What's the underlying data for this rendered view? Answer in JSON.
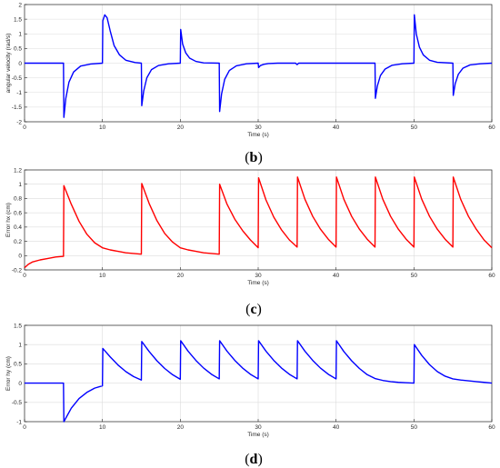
{
  "chart_data": [
    {
      "type": "line",
      "caption": "b",
      "xlabel": "Time (s)",
      "ylabel": "angular velocity (rad/s)",
      "xlim": [
        0,
        60
      ],
      "ylim": [
        -2,
        2
      ],
      "xticks": [
        0,
        10,
        20,
        30,
        40,
        50,
        60
      ],
      "yticks": [
        -2,
        -1.5,
        -1,
        -0.5,
        0,
        0.5,
        1,
        1.5,
        2
      ],
      "grid": true,
      "color": "#0000ff",
      "series": [
        {
          "x": [
            0,
            5,
            5.05,
            5.3,
            5.7,
            6.3,
            7.2,
            8.5,
            10,
            10.05,
            10.3,
            10.6,
            11,
            11.5,
            12.2,
            13,
            14.2,
            15,
            15.05,
            15.3,
            15.7,
            16.3,
            17.2,
            18.5,
            20,
            20.05,
            20.3,
            20.7,
            21.2,
            22,
            23,
            25,
            25.05,
            25.3,
            25.7,
            26.3,
            27.2,
            28.5,
            30,
            30.05,
            30.3,
            30.7,
            31.3,
            32.5,
            34.8,
            35,
            35.2,
            36,
            45,
            45.05,
            45.3,
            45.7,
            46.3,
            47.2,
            48.5,
            50,
            50.05,
            50.3,
            50.7,
            51.2,
            52,
            53,
            55,
            55.05,
            55.3,
            55.7,
            56.3,
            57.2,
            58.5,
            60
          ],
          "y": [
            0,
            0,
            -1.85,
            -1.2,
            -0.65,
            -0.3,
            -0.1,
            -0.03,
            0,
            1.45,
            1.65,
            1.55,
            1.1,
            0.6,
            0.28,
            0.1,
            0.02,
            0,
            -1.45,
            -0.95,
            -0.5,
            -0.22,
            -0.08,
            -0.02,
            0,
            1.15,
            0.65,
            0.35,
            0.17,
            0.06,
            0.01,
            0,
            -1.65,
            -1.05,
            -0.55,
            -0.25,
            -0.09,
            -0.02,
            0,
            -0.15,
            -0.08,
            -0.04,
            -0.015,
            0,
            0,
            -0.05,
            0,
            0,
            0,
            -1.2,
            -0.78,
            -0.42,
            -0.2,
            -0.07,
            -0.02,
            0,
            1.65,
            1.0,
            0.55,
            0.28,
            0.1,
            0.03,
            0,
            -1.1,
            -0.7,
            -0.38,
            -0.17,
            -0.06,
            -0.02,
            0
          ]
        }
      ]
    },
    {
      "type": "line",
      "caption": "c",
      "xlabel": "Time (s)",
      "ylabel": "Error hx (cm)",
      "xlim": [
        0,
        60
      ],
      "ylim": [
        -0.2,
        1.2
      ],
      "xticks": [
        0,
        10,
        20,
        30,
        40,
        50,
        60
      ],
      "yticks": [
        -0.2,
        0,
        0.2,
        0.4,
        0.6,
        0.8,
        1,
        1.2
      ],
      "grid": true,
      "color": "#ff0000",
      "series": [
        {
          "x": [
            0,
            0.5,
            1,
            2,
            3,
            4,
            5,
            5.05,
            6,
            7,
            8,
            9,
            10,
            11,
            12,
            13,
            14,
            15,
            15.05,
            16,
            17,
            18,
            19,
            20,
            21,
            22,
            23,
            24,
            25,
            25.05,
            26,
            27,
            28,
            29,
            30,
            30.05,
            31,
            32,
            33,
            34,
            35,
            35.05,
            36,
            37,
            38,
            39,
            40,
            40.05,
            41,
            42,
            43,
            44,
            45,
            45.05,
            46,
            47,
            48,
            49,
            50,
            50.05,
            51,
            52,
            53,
            54,
            55,
            55.05,
            56,
            57,
            58,
            59,
            60
          ],
          "y": [
            -0.17,
            -0.12,
            -0.09,
            -0.06,
            -0.04,
            -0.02,
            -0.01,
            0.98,
            0.72,
            0.48,
            0.3,
            0.18,
            0.11,
            0.08,
            0.06,
            0.04,
            0.03,
            0.02,
            1.01,
            0.73,
            0.49,
            0.31,
            0.19,
            0.11,
            0.08,
            0.06,
            0.04,
            0.03,
            0.02,
            1.0,
            0.72,
            0.51,
            0.35,
            0.22,
            0.11,
            1.09,
            0.78,
            0.54,
            0.36,
            0.22,
            0.12,
            1.1,
            0.79,
            0.55,
            0.37,
            0.23,
            0.12,
            1.1,
            0.79,
            0.55,
            0.37,
            0.23,
            0.12,
            1.1,
            0.79,
            0.55,
            0.37,
            0.23,
            0.12,
            1.1,
            0.79,
            0.55,
            0.37,
            0.23,
            0.12,
            1.1,
            0.79,
            0.55,
            0.37,
            0.22,
            0.11
          ]
        }
      ]
    },
    {
      "type": "line",
      "caption": "d",
      "xlabel": "Time (s)",
      "ylabel": "Error hy (cm)",
      "xlim": [
        0,
        60
      ],
      "ylim": [
        -1,
        1.5
      ],
      "xticks": [
        0,
        10,
        20,
        30,
        40,
        50,
        60
      ],
      "yticks": [
        -1,
        -0.5,
        0,
        0.5,
        1,
        1.5
      ],
      "grid": true,
      "color": "#0000ff",
      "series": [
        {
          "x": [
            0,
            5,
            5.05,
            6,
            7,
            8,
            9,
            10,
            10.05,
            11,
            12,
            13,
            14,
            15,
            15.05,
            16,
            17,
            18,
            19,
            20,
            20.05,
            21,
            22,
            23,
            24,
            25,
            25.05,
            26,
            27,
            28,
            29,
            30,
            30.05,
            31,
            32,
            33,
            34,
            35,
            35.05,
            36,
            37,
            38,
            39,
            40,
            40.05,
            41,
            42,
            43,
            44,
            45,
            46,
            47,
            48,
            49,
            50,
            50.05,
            51,
            52,
            53,
            54,
            55,
            56,
            57,
            58,
            59,
            60
          ],
          "y": [
            0,
            0,
            -1.0,
            -0.65,
            -0.4,
            -0.24,
            -0.13,
            -0.07,
            0.9,
            0.68,
            0.47,
            0.3,
            0.17,
            0.08,
            1.08,
            0.82,
            0.58,
            0.38,
            0.22,
            0.1,
            1.1,
            0.83,
            0.59,
            0.39,
            0.23,
            0.11,
            1.1,
            0.83,
            0.59,
            0.39,
            0.23,
            0.11,
            1.1,
            0.83,
            0.59,
            0.39,
            0.23,
            0.11,
            1.1,
            0.83,
            0.59,
            0.39,
            0.23,
            0.11,
            1.1,
            0.82,
            0.58,
            0.38,
            0.22,
            0.12,
            0.07,
            0.04,
            0.02,
            0.01,
            0.0,
            1.0,
            0.72,
            0.48,
            0.3,
            0.18,
            0.11,
            0.08,
            0.06,
            0.04,
            0.02,
            0.0
          ]
        }
      ]
    }
  ]
}
